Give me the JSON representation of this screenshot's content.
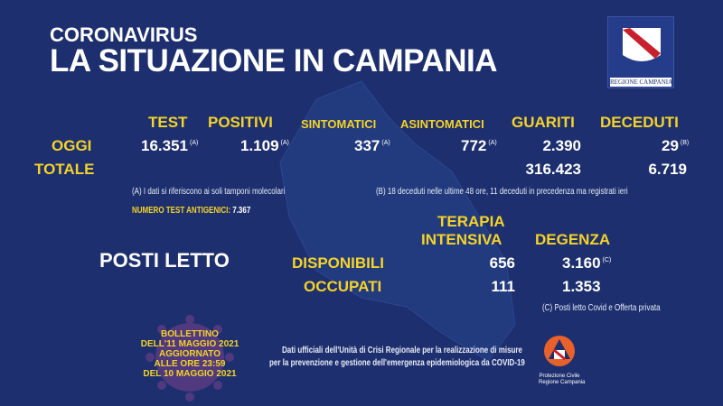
{
  "header": {
    "kicker": "CORONAVIRUS",
    "title": "LA SITUAZIONE IN CAMPANIA",
    "logo_text": "REGIONE CAMPANIA"
  },
  "columns": {
    "test": "TEST",
    "positivi": "POSITIVI",
    "sintomatici": "SINTOMATICI",
    "asintomatici": "ASINTOMATICI",
    "guariti": "GUARITI",
    "deceduti": "DECEDUTI"
  },
  "rows": {
    "oggi": {
      "label": "OGGI",
      "test": "16.351",
      "test_note": "(A)",
      "positivi": "1.109",
      "positivi_note": "(A)",
      "sintomatici": "337",
      "sintomatici_note": "(A)",
      "asintomatici": "772",
      "asintomatici_note": "(A)",
      "guariti": "2.390",
      "deceduti": "29",
      "deceduti_note": "(B)"
    },
    "totale": {
      "label": "TOTALE",
      "guariti": "316.423",
      "deceduti": "6.719"
    }
  },
  "notes": {
    "a": "(A) I dati si riferiscono ai soli tamponi molecolari",
    "b": "(B) 18 deceduti nelle ultime 48 ore, 11 deceduti in precedenza ma registrati ieri",
    "antigenici_label": "NUMERO TEST ANTIGENICI:",
    "antigenici_value": "7.367",
    "c": "(C) Posti letto Covid e Offerta privata"
  },
  "posti_letto": {
    "title": "POSTI LETTO",
    "col1_line1": "TERAPIA",
    "col1_line2": "INTENSIVA",
    "col2": "DEGENZA",
    "rows": [
      {
        "label": "DISPONIBILI",
        "ti": "656",
        "degenza": "3.160",
        "note": "(C)"
      },
      {
        "label": "OCCUPATI",
        "ti": "111",
        "degenza": "1.353"
      }
    ]
  },
  "bollettino": [
    "BOLLETTINO",
    "DELL'11 MAGGIO 2021",
    "AGGIORNATO",
    "ALLE ORE 23:59",
    "DEL 10 MAGGIO 2021"
  ],
  "footer": {
    "line1": "Dati ufficiali dell'Unità di Crisi Regionale per la realizzazione di misure",
    "line2": "per la prevenzione e gestione dell'emergenza epidemiologica da COVID-19",
    "pc_line1": "Protezione Civile",
    "pc_line2": "Regione Campania"
  },
  "colors": {
    "background": "#1d2f6f",
    "accent": "#f5d327"
  }
}
